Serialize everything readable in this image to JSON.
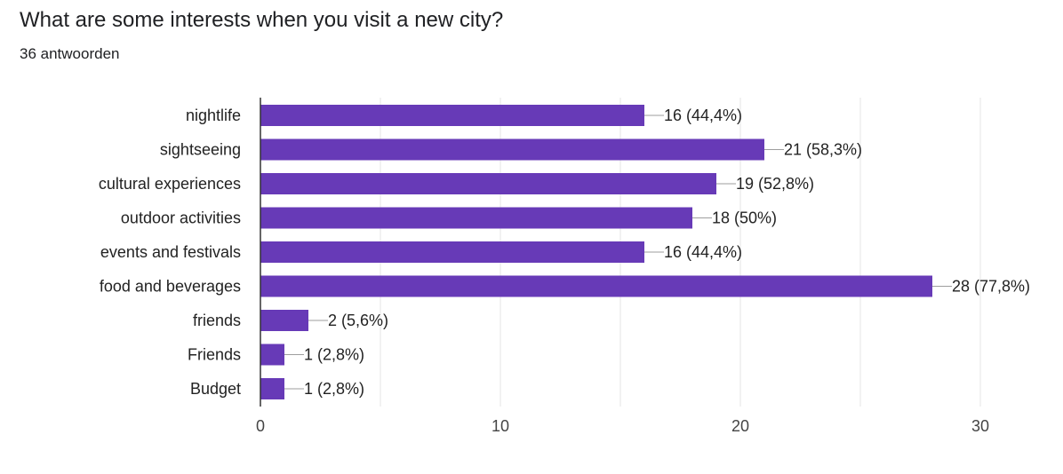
{
  "header": {
    "question": "What are some interests when you visit a new city?",
    "response_count": "36 antwoorden"
  },
  "chart_data": {
    "type": "bar",
    "orientation": "horizontal",
    "categories": [
      "nightlife",
      "sightseeing",
      "cultural experiences",
      "outdoor activities",
      "events and festivals",
      "food and beverages",
      "friends",
      "Friends",
      "Budget"
    ],
    "values": [
      16,
      21,
      19,
      18,
      16,
      28,
      2,
      1,
      1
    ],
    "data_labels": [
      "16 (44,4%)",
      "21 (58,3%)",
      "19 (52,8%)",
      "18 (50%)",
      "16 (44,4%)",
      "28 (77,8%)",
      "2 (5,6%)",
      "1 (2,8%)",
      "1 (2,8%)"
    ],
    "xlim": [
      0,
      30
    ],
    "xticks": [
      0,
      10,
      20,
      30
    ],
    "grid": true,
    "bar_color": "#673ab7",
    "title": "",
    "xlabel": "",
    "ylabel": ""
  }
}
